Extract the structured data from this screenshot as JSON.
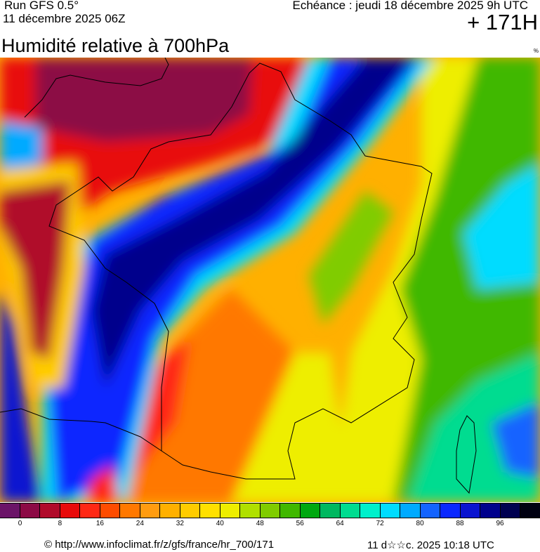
{
  "header": {
    "run": "Run GFS 0.5°",
    "run_date": "11 décembre 2025 06Z",
    "valid": "Echéance : jeudi 18 décembre 2025 9h UTC",
    "lead": "+ 171H",
    "title": "Humidité relative à 700hPa",
    "unit": "%"
  },
  "legend": {
    "colors": [
      "#6b1468",
      "#8c0a45",
      "#b00a2a",
      "#e80a0a",
      "#ff2814",
      "#ff4c00",
      "#ff7800",
      "#ff9c10",
      "#ffb000",
      "#ffcc00",
      "#ffe000",
      "#eeee00",
      "#b0e000",
      "#80cc00",
      "#40b800",
      "#00a810",
      "#00b860",
      "#00dc90",
      "#00f0cc",
      "#00dcff",
      "#00aaff",
      "#1464ff",
      "#0a28ff",
      "#0a14d0",
      "#00008c",
      "#000050",
      "#000010"
    ],
    "labels": [
      "0",
      "8",
      "16",
      "24",
      "32",
      "40",
      "48",
      "56",
      "64",
      "72",
      "80",
      "88",
      "96"
    ]
  },
  "footer": {
    "source": "© http://www.infoclimat.fr/z/gfs/france/hr_700/171",
    "generated": "11 d☆☆c. 2025 10:18 UTC"
  }
}
